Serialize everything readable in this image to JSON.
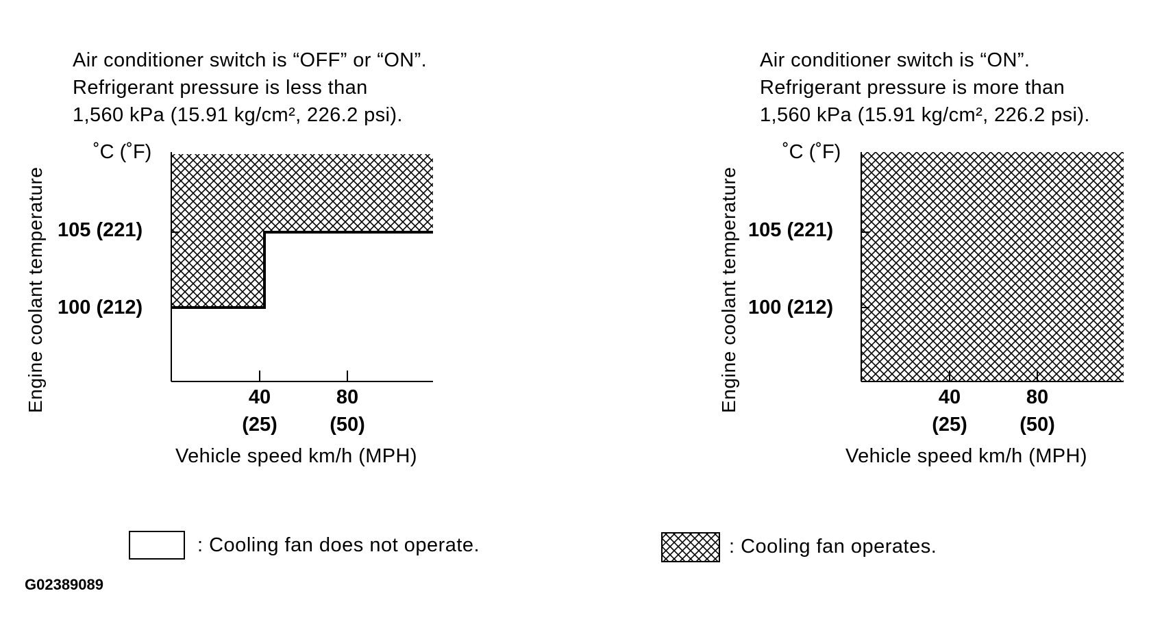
{
  "left_chart": {
    "condition_lines": [
      "Air conditioner switch is “OFF” or “ON”.",
      "Refrigerant pressure is less than",
      "1,560 kPa (15.91 kg/cm², 226.2 psi)."
    ],
    "y_axis_label": "Engine coolant temperature",
    "y_unit": "˚C (˚F)",
    "y_ticks": [
      "105 (221)",
      "100 (212)"
    ],
    "x_ticks": [
      {
        "top": "40",
        "bottom": "(25)"
      },
      {
        "top": "80",
        "bottom": "(50)"
      }
    ],
    "x_axis_label": "Vehicle speed km/h (MPH)",
    "fan_operates_region": [
      {
        "speed_from": 0,
        "speed_to": 43,
        "temp_above": 100
      },
      {
        "speed_from": 43,
        "speed_to": 120,
        "temp_above": 105
      }
    ]
  },
  "right_chart": {
    "condition_lines": [
      "Air conditioner switch is “ON”.",
      "Refrigerant pressure is more than",
      "1,560 kPa (15.91 kg/cm², 226.2 psi)."
    ],
    "y_axis_label": "Engine coolant temperature",
    "y_unit": "˚C (˚F)",
    "y_ticks": [
      "105 (221)",
      "100 (212)"
    ],
    "x_ticks": [
      {
        "top": "40",
        "bottom": "(25)"
      },
      {
        "top": "80",
        "bottom": "(50)"
      }
    ],
    "x_axis_label": "Vehicle speed km/h (MPH)",
    "fan_operates_region": [
      {
        "speed_from": 0,
        "speed_to": 120,
        "temp_above": "all"
      }
    ]
  },
  "legend": {
    "not_operate_text": ": Cooling fan does not operate.",
    "operate_text": ": Cooling fan operates."
  },
  "figure_id": "G02389089"
}
